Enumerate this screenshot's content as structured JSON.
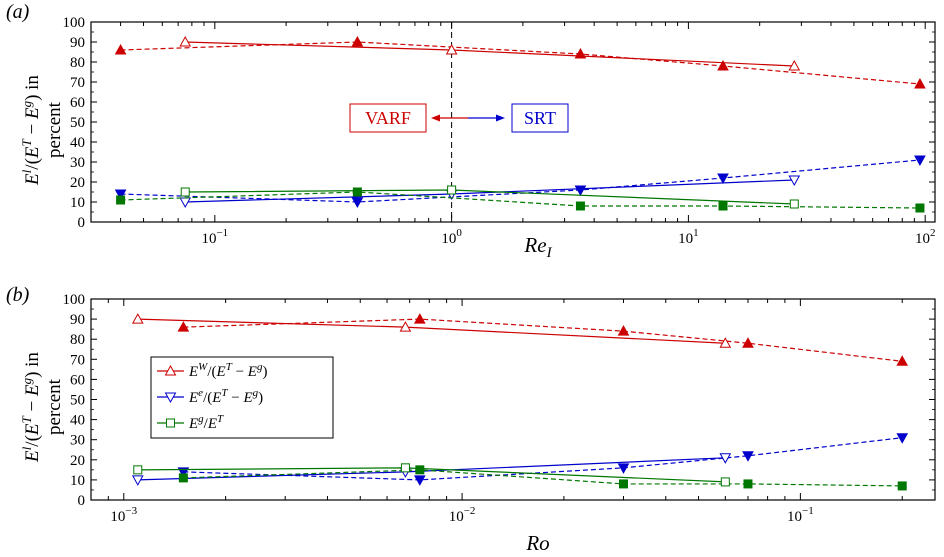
{
  "chart_data": [
    {
      "type": "line",
      "panel_label": "(a)",
      "xlabel_main": "Re",
      "xlabel_sub": "I",
      "ylabel_line1": "E^l/(E^T − E^g) in",
      "ylabel_line2": "percent",
      "xscale": "log",
      "xlim": [
        0.03,
        110
      ],
      "ylim": [
        0,
        100
      ],
      "yticks": [
        0,
        10,
        20,
        30,
        40,
        50,
        60,
        70,
        80,
        90,
        100
      ],
      "xtick_labels": [
        {
          "value": 0.1,
          "base": "10",
          "exp": "−1"
        },
        {
          "value": 1,
          "base": "10",
          "exp": "0"
        },
        {
          "value": 10,
          "base": "10",
          "exp": "1"
        },
        {
          "value": 100,
          "base": "10",
          "exp": "2"
        }
      ],
      "vline": 1,
      "annotations": {
        "left_label": "VARF",
        "right_label": "SRT",
        "left_color": "#cc0000",
        "right_color": "#0000cc"
      },
      "series": [
        {
          "color": "#cc0000",
          "dash": true,
          "marker": "triangle-up",
          "filled": true,
          "x": [
            0.04,
            0.4,
            3.5,
            14,
            95
          ],
          "y": [
            86,
            90,
            84,
            78,
            69
          ]
        },
        {
          "color": "#cc0000",
          "dash": false,
          "marker": "triangle-up",
          "filled": false,
          "x": [
            0.075,
            1,
            28
          ],
          "y": [
            90,
            86,
            78
          ]
        },
        {
          "color": "#0000cc",
          "dash": true,
          "marker": "triangle-down",
          "filled": true,
          "x": [
            0.04,
            0.4,
            3.5,
            14,
            95
          ],
          "y": [
            14,
            10,
            16,
            22,
            31
          ]
        },
        {
          "color": "#0000cc",
          "dash": false,
          "marker": "triangle-down",
          "filled": false,
          "x": [
            0.075,
            1,
            28
          ],
          "y": [
            10,
            14,
            21
          ]
        },
        {
          "color": "#007700",
          "dash": true,
          "marker": "square",
          "filled": true,
          "x": [
            0.04,
            0.4,
            3.5,
            14,
            95
          ],
          "y": [
            11,
            15,
            8,
            8,
            7
          ]
        },
        {
          "color": "#007700",
          "dash": false,
          "marker": "square",
          "filled": false,
          "x": [
            0.075,
            1,
            28
          ],
          "y": [
            15,
            16,
            9
          ]
        }
      ]
    },
    {
      "type": "line",
      "panel_label": "(b)",
      "xlabel_main": "Ro",
      "xlabel_sub": "",
      "ylabel_line1": "E^l/(E^T − E^g) in",
      "ylabel_line2": "percent",
      "xscale": "log",
      "xlim": [
        0.0008,
        0.25
      ],
      "ylim": [
        0,
        100
      ],
      "yticks": [
        0,
        10,
        20,
        30,
        40,
        50,
        60,
        70,
        80,
        90,
        100
      ],
      "xtick_labels": [
        {
          "value": 0.001,
          "base": "10",
          "exp": "−3"
        },
        {
          "value": 0.01,
          "base": "10",
          "exp": "−2"
        },
        {
          "value": 0.1,
          "base": "10",
          "exp": "−1"
        }
      ],
      "legend": {
        "placement": "center-left",
        "entries": [
          {
            "color": "#cc0000",
            "marker": "triangle-up",
            "text": "E^W/(E^T − E^g)"
          },
          {
            "color": "#0000cc",
            "marker": "triangle-down",
            "text": "E^e/(E^T − E^g)"
          },
          {
            "color": "#007700",
            "marker": "square",
            "text": "E^g/E^T"
          }
        ]
      },
      "series": [
        {
          "color": "#cc0000",
          "dash": true,
          "marker": "triangle-up",
          "filled": true,
          "x": [
            0.0015,
            0.0075,
            0.03,
            0.07,
            0.2
          ],
          "y": [
            86,
            90,
            84,
            78,
            69
          ]
        },
        {
          "color": "#cc0000",
          "dash": false,
          "marker": "triangle-up",
          "filled": false,
          "x": [
            0.0011,
            0.0068,
            0.06
          ],
          "y": [
            90,
            86,
            78
          ]
        },
        {
          "color": "#0000cc",
          "dash": true,
          "marker": "triangle-down",
          "filled": true,
          "x": [
            0.0015,
            0.0075,
            0.03,
            0.07,
            0.2
          ],
          "y": [
            14,
            10,
            16,
            22,
            31
          ]
        },
        {
          "color": "#0000cc",
          "dash": false,
          "marker": "triangle-down",
          "filled": false,
          "x": [
            0.0011,
            0.0068,
            0.06
          ],
          "y": [
            10,
            14,
            21
          ]
        },
        {
          "color": "#007700",
          "dash": true,
          "marker": "square",
          "filled": true,
          "x": [
            0.0015,
            0.0075,
            0.03,
            0.07,
            0.2
          ],
          "y": [
            11,
            15,
            8,
            8,
            7
          ]
        },
        {
          "color": "#007700",
          "dash": false,
          "marker": "square",
          "filled": false,
          "x": [
            0.0011,
            0.0068,
            0.06
          ],
          "y": [
            15,
            16,
            9
          ]
        }
      ]
    }
  ]
}
